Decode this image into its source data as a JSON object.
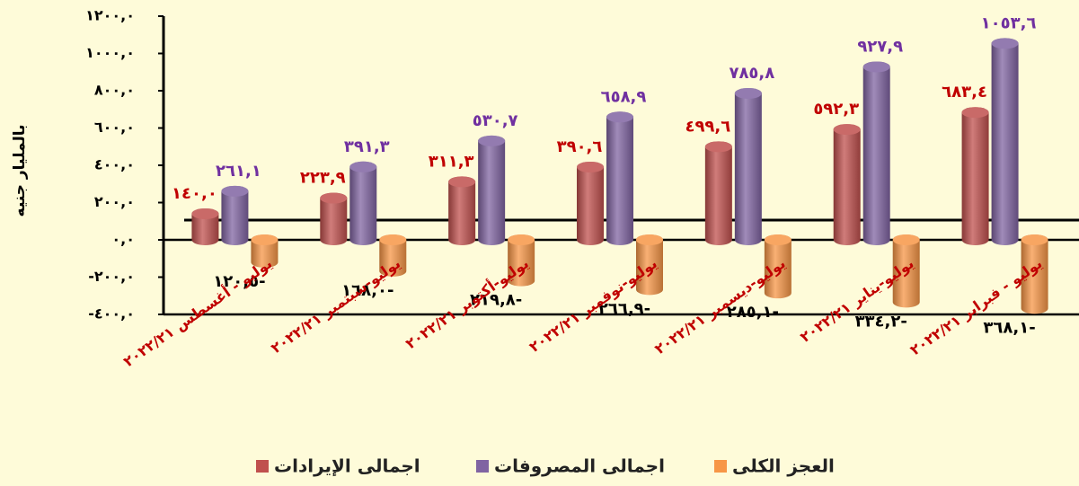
{
  "chart_data": {
    "type": "bar",
    "y_label": "بالمليار جنيه",
    "categories": [
      "يوليو - أغسطس ٢٠٢٢/٢١",
      "يوليو-سبتمبر ٢٠٢٢/٢١",
      "يوليو-أكتوبر ٢٠٢٢/٢١",
      "يوليو-نوفمبر ٢٠٢٢/٢١",
      "يوليو-ديسمبر ٢٠٢٢/٢١",
      "يوليو-يناير ٢٠٢٢/٢١",
      "يوليو - فبراير ٢٠٢٢/٢١"
    ],
    "series": [
      {
        "name": "اجمالى الإيرادات",
        "color": "#c0504d",
        "label_color": "#c00000",
        "values": [
          140.0,
          223.9,
          311.3,
          390.6,
          499.6,
          592.3,
          683.4
        ],
        "value_labels": [
          "١٤٠,٠",
          "٢٢٣,٩",
          "٣١١,٣",
          "٣٩٠,٦",
          "٤٩٩,٦",
          "٥٩٢,٣",
          "٦٨٣,٤"
        ]
      },
      {
        "name": "اجمالى المصروفات",
        "color": "#8064a2",
        "label_color": "#7030a0",
        "values": [
          261.1,
          391.3,
          530.7,
          658.9,
          785.8,
          927.9,
          1053.6
        ],
        "value_labels": [
          "٢٦١,١",
          "٣٩١,٣",
          "٥٣٠,٧",
          "٦٥٨,٩",
          "٧٨٥,٨",
          "٩٢٧,٩",
          "١٠٥٣,٦"
        ]
      },
      {
        "name": "العجز الكلى",
        "color": "#f79646",
        "label_color": "#000000",
        "values": [
          -120.5,
          -168.0,
          -219.8,
          -266.9,
          -285.1,
          -334.2,
          -368.1
        ],
        "value_labels": [
          "١٢٠,٥-",
          "١٦٨,٠-",
          "٢١٩,٨-",
          "٢٦٦,٩-",
          "٢٨٥,١-",
          "٣٣٤,٢-",
          "٣٦٨,١-"
        ]
      }
    ],
    "ylim": [
      -400,
      1200
    ],
    "yticks": [
      {
        "value": -400,
        "label": "-٤٠٠,٠"
      },
      {
        "value": -200,
        "label": "-٢٠٠,٠"
      },
      {
        "value": 0,
        "label": "٠,٠"
      },
      {
        "value": 200,
        "label": "٢٠٠,٠"
      },
      {
        "value": 400,
        "label": "٤٠٠,٠"
      },
      {
        "value": 600,
        "label": "٦٠٠,٠"
      },
      {
        "value": 800,
        "label": "٨٠٠,٠"
      },
      {
        "value": 1000,
        "label": "١٠٠٠,٠"
      },
      {
        "value": 1200,
        "label": "١٢٠٠,٠"
      }
    ],
    "category_label_color": "#c00000",
    "legend": "bottom"
  }
}
